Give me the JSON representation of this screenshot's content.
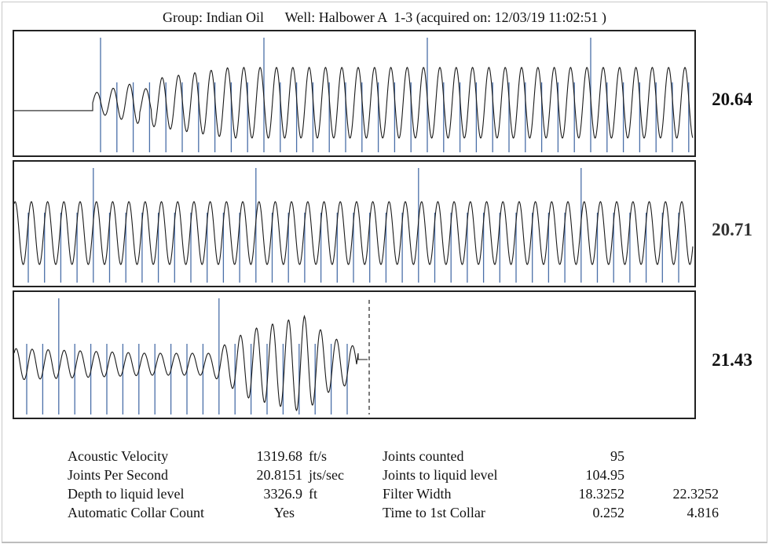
{
  "header": {
    "group_label": "Group:",
    "group_value": "Indian Oil",
    "well_label": "Well:",
    "well_value": "Halbower A  1-3",
    "acquired_text": "(acquired on: 12/03/19 11:02:51 )"
  },
  "chart_data": [
    {
      "type": "line",
      "panel": 1,
      "title": "",
      "joints_per_second_value": "20.64",
      "trace": "acoustic signal with flat lead-in, then regular oscillation",
      "collar_markers": "vertical blue lines, one per joint; every 10th taller"
    },
    {
      "type": "line",
      "panel": 2,
      "title": "",
      "joints_per_second_value": "20.71",
      "trace": "regular oscillation",
      "collar_markers": "vertical blue lines, one per joint; every 10th taller"
    },
    {
      "type": "line",
      "panel": 3,
      "title": "",
      "joints_per_second_value": "21.43",
      "trace": "oscillation ending in large liquid-level kick, followed by dashed end marker",
      "collar_markers": "vertical blue lines, one per joint; every 10th taller"
    }
  ],
  "rates": [
    "20.64",
    "20.71",
    "21.43"
  ],
  "colors": {
    "trace": "#1a1a1a",
    "collar_marker": "#4a6fa8",
    "border": "#222222"
  },
  "stats": {
    "left": [
      {
        "label": "Acoustic Velocity",
        "value": "1319.68",
        "unit": "ft/s"
      },
      {
        "label": "Joints Per Second",
        "value": "20.8151",
        "unit": "jts/sec"
      },
      {
        "label": "Depth to liquid level",
        "value": "3326.9",
        "unit": "ft"
      },
      {
        "label": "Automatic Collar Count",
        "value": "Yes",
        "unit": ""
      }
    ],
    "right": [
      {
        "label": "Joints counted",
        "value": "95",
        "value2": ""
      },
      {
        "label": "Joints to liquid level",
        "value": "104.95",
        "value2": ""
      },
      {
        "label": "Filter Width",
        "value": "18.3252",
        "value2": "22.3252"
      },
      {
        "label": "Time to 1st Collar",
        "value": "0.252",
        "value2": "4.816"
      }
    ]
  }
}
